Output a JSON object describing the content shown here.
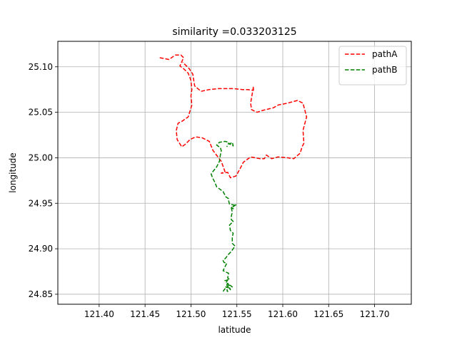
{
  "chart_data": {
    "type": "line",
    "title": "similarity =0.033203125",
    "xlabel": "latitude",
    "ylabel": "longitude",
    "xlim": [
      121.355,
      121.74
    ],
    "ylim": [
      24.839,
      25.128
    ],
    "xticks": [
      121.4,
      121.45,
      121.5,
      121.55,
      121.6,
      121.65,
      121.7
    ],
    "xtick_labels": [
      "121.40",
      "121.45",
      "121.50",
      "121.55",
      "121.60",
      "121.65",
      "121.70"
    ],
    "yticks": [
      24.85,
      24.9,
      24.95,
      25.0,
      25.05,
      25.1
    ],
    "ytick_labels": [
      "24.85",
      "24.90",
      "24.95",
      "25.00",
      "25.05",
      "25.10"
    ],
    "grid": true,
    "legend_position": "top-right",
    "series": [
      {
        "name": "pathA",
        "color": "#ff0000",
        "linestyle": "dashed",
        "x": [
          121.466,
          121.476,
          121.483,
          121.489,
          121.492,
          121.488,
          121.493,
          121.497,
          121.5,
          121.501,
          121.5,
          121.501,
          121.497,
          121.49,
          121.486,
          121.484,
          121.485,
          121.49,
          121.494,
          121.499,
          121.505,
          121.512,
          121.52,
          121.524,
          121.533,
          121.537,
          121.533,
          121.54,
          121.543,
          121.549,
          121.553,
          121.557,
          121.565,
          121.575,
          121.58,
          121.582,
          121.588,
          121.595,
          121.605,
          121.612,
          121.619,
          121.621,
          121.623,
          121.622,
          121.626,
          121.622,
          121.616,
          121.605,
          121.595,
          121.59,
          121.578,
          121.572,
          121.566,
          121.565,
          121.567,
          121.568,
          121.568,
          121.562,
          121.556,
          121.547,
          121.539,
          121.53,
          121.52,
          121.511,
          121.504,
          121.502,
          121.498,
          121.491
        ],
        "y": [
          25.11,
          25.108,
          25.113,
          25.113,
          25.11,
          25.101,
          25.097,
          25.093,
          25.085,
          25.075,
          25.068,
          25.058,
          25.045,
          25.04,
          25.038,
          25.03,
          25.02,
          25.012,
          25.015,
          25.02,
          25.023,
          25.022,
          25.018,
          25.008,
          24.996,
          24.985,
          24.983,
          24.984,
          24.978,
          24.98,
          24.987,
          24.995,
          25.001,
          24.999,
          24.999,
          25.003,
          24.999,
          25.001,
          25.0,
          24.999,
          25.005,
          25.012,
          25.016,
          25.03,
          25.045,
          25.06,
          25.063,
          25.06,
          25.058,
          25.055,
          25.052,
          25.05,
          25.053,
          25.06,
          25.072,
          25.078,
          25.074,
          25.075,
          25.075,
          25.076,
          25.076,
          25.076,
          25.075,
          25.073,
          25.079,
          25.092,
          25.098,
          25.105
        ]
      },
      {
        "name": "pathB",
        "color": "#008000",
        "linestyle": "dashed",
        "x": [
          121.535,
          121.537,
          121.54,
          121.538,
          121.541,
          121.539,
          121.543,
          121.54,
          121.545,
          121.538,
          121.54,
          121.537,
          121.542,
          121.54,
          121.541,
          121.535,
          121.539,
          121.536,
          121.535,
          121.538,
          121.54,
          121.544,
          121.548,
          121.545,
          121.545,
          121.546,
          121.543,
          121.542,
          121.546,
          121.544,
          121.544,
          121.545,
          121.544,
          121.55,
          121.545,
          121.546,
          121.544,
          121.547,
          121.542,
          121.541,
          121.541,
          121.538,
          121.535,
          121.528,
          121.526,
          121.524,
          121.522,
          121.524,
          121.528,
          121.531,
          121.532,
          121.533,
          121.532,
          121.528,
          121.531,
          121.537,
          121.541,
          121.542,
          121.545,
          121.546,
          121.541,
          121.539
        ],
        "y": [
          24.853,
          24.856,
          24.853,
          24.858,
          24.857,
          24.86,
          24.855,
          24.862,
          24.858,
          24.862,
          24.866,
          24.865,
          24.866,
          24.868,
          24.873,
          24.876,
          24.884,
          24.885,
          24.887,
          24.89,
          24.893,
          24.897,
          24.903,
          24.906,
          24.913,
          24.917,
          24.92,
          24.926,
          24.93,
          24.932,
          24.936,
          24.94,
          24.945,
          24.949,
          24.946,
          24.944,
          24.945,
          24.948,
          24.949,
          24.953,
          24.955,
          24.957,
          24.963,
          24.968,
          24.973,
          24.977,
          24.982,
          24.985,
          24.99,
          24.996,
          25.003,
          25.008,
          25.011,
          25.014,
          25.017,
          25.018,
          25.017,
          25.015,
          25.017,
          25.013,
          25.016,
          25.012
        ]
      }
    ]
  }
}
